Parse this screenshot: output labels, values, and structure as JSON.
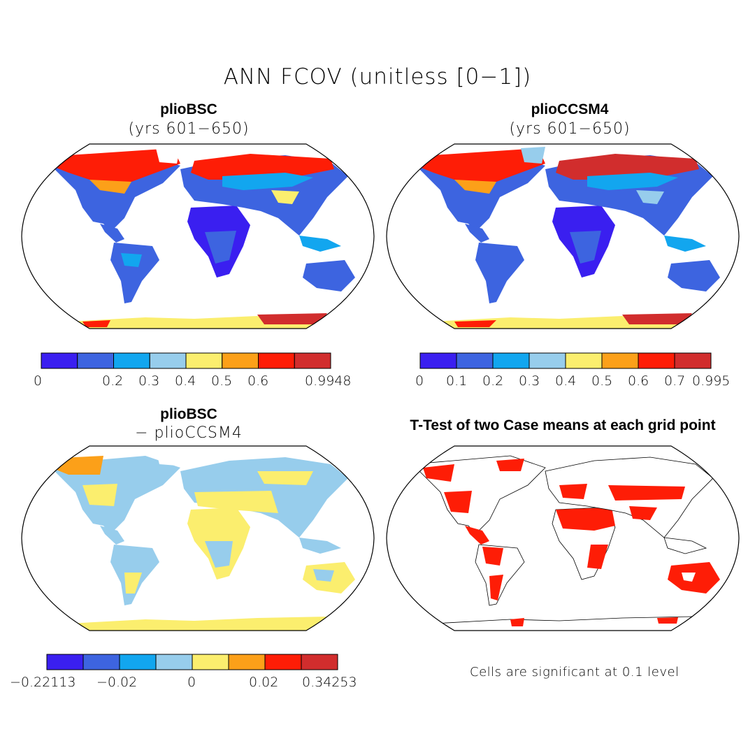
{
  "figure": {
    "title": "ANN FCOV (unitless [0−1])"
  },
  "panels": [
    {
      "id": "top-left",
      "title": "plioBSC",
      "subtitle": "(yrs 601−650)",
      "colorbar": {
        "colors": [
          "#3a1ff0",
          "#3d64e0",
          "#12a6ef",
          "#97cdec",
          "#fbee6e",
          "#fca019",
          "#fe1d06",
          "#d12d2d"
        ],
        "labels": [
          "0",
          "0.2",
          "0.3",
          "0.4",
          "0.5",
          "0.6",
          "0.9948"
        ]
      }
    },
    {
      "id": "top-right",
      "title": "plioCCSM4",
      "subtitle": "(yrs 601−650)",
      "colorbar": {
        "colors": [
          "#3a1ff0",
          "#3d64e0",
          "#12a6ef",
          "#97cdec",
          "#fbee6e",
          "#fca019",
          "#fe1d06",
          "#d12d2d"
        ],
        "labels": [
          "0",
          "0.1",
          "0.2",
          "0.3",
          "0.4",
          "0.5",
          "0.6",
          "0.7",
          "0.995"
        ]
      }
    },
    {
      "id": "bottom-left",
      "title": "plioBSC",
      "subtitle": "− plioCCSM4",
      "colorbar": {
        "colors": [
          "#3a1ff0",
          "#3d64e0",
          "#12a6ef",
          "#97cdec",
          "#fbee6e",
          "#fca019",
          "#fe1d06",
          "#d12d2d"
        ],
        "labels": [
          "−0.22113",
          "−0.02",
          "0",
          "0.02",
          "0.34253"
        ]
      }
    },
    {
      "id": "bottom-right",
      "title": "T-Test of two Case means at each grid point",
      "note": "Cells are significant at 0.1 level"
    }
  ]
}
